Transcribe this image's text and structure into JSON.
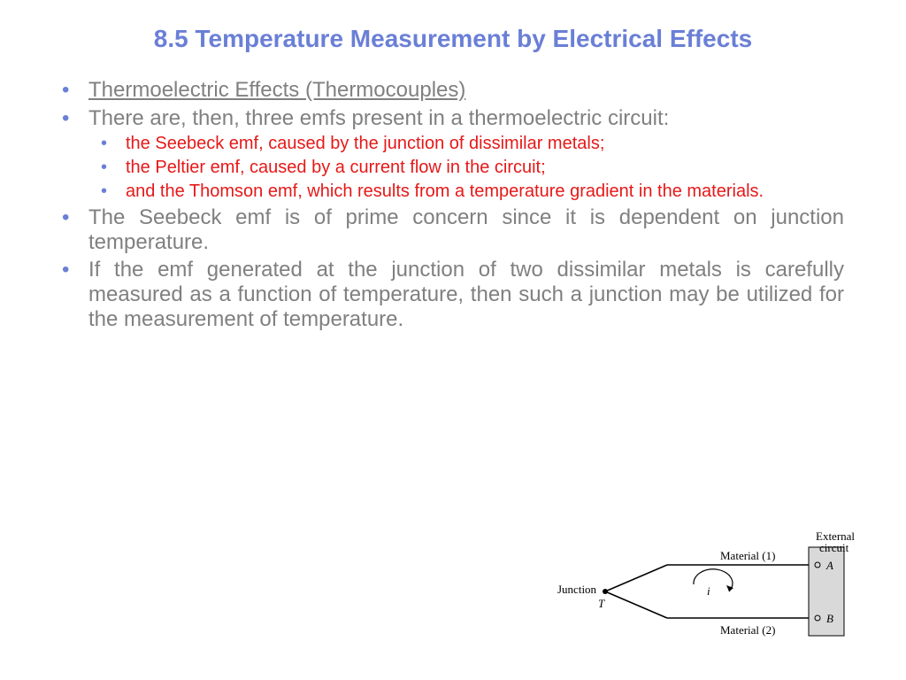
{
  "colors": {
    "title": "#6a7fd6",
    "body": "#808080",
    "bullet_main": "#6a7fd6",
    "sub_text": "#e61818",
    "sub_bullet": "#6a7fd6",
    "diagram_stroke": "#000000",
    "diagram_text": "#000000",
    "diagram_box_fill": "#d9d9d9"
  },
  "title": "8.5 Temperature Measurement by Electrical Effects",
  "bullets": {
    "b1": "Thermoelectric Effects (Thermocouples)",
    "b2": "There are, then, three emfs present in a thermoelectric circuit:",
    "sub1": "the Seebeck emf, caused by the junction of dissimilar metals;",
    "sub2": "the Peltier emf, caused by a current flow in the circuit;",
    "sub3": "and the Thomson emf, which results from a temperature gradient in the materials.",
    "b3": "The Seebeck emf is of prime concern since it is dependent on junction temperature.",
    "b4": "If the emf generated at the junction of two dissimilar metals is carefully measured as a function of temperature, then such a junction may be utilized for the measurement of temperature."
  },
  "diagram": {
    "junction_label": "Junction",
    "junction_T": "T",
    "mat1": "Material (1)",
    "mat2": "Material (2)",
    "ext": "External",
    "ext2": "circuit",
    "A": "A",
    "B": "B",
    "i": "i"
  }
}
